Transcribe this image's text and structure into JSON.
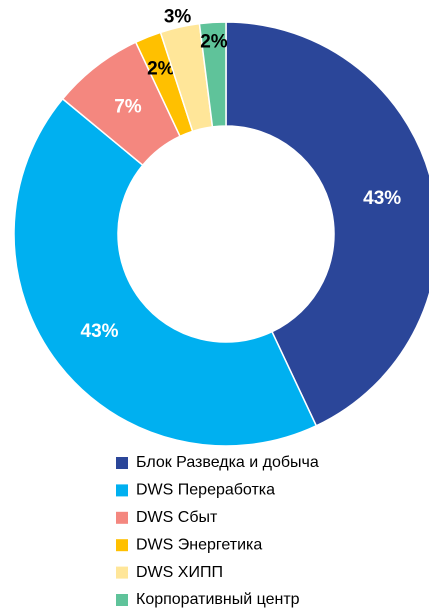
{
  "chart_data": {
    "type": "donut",
    "categories": [
      "Блок Разведка и добыча",
      "DWS Переработка",
      "DWS Сбыт",
      "DWS Энергетика",
      "DWS ХИПП",
      "Корпоративный центр"
    ],
    "values": [
      43,
      43,
      7,
      2,
      3,
      2
    ],
    "value_labels": [
      "43%",
      "43%",
      "7%",
      "2%",
      "3%",
      "2%"
    ],
    "colors": [
      "#2b4699",
      "#00b0f0",
      "#f4877f",
      "#ffc000",
      "#ffe699",
      "#5fc39a"
    ],
    "legend": "bottom"
  }
}
